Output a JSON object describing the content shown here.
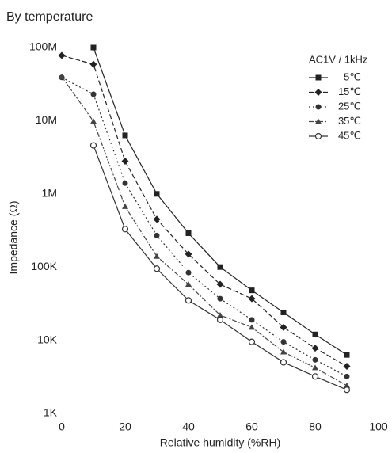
{
  "chart_data": {
    "type": "line",
    "title": "By temperature",
    "x_label": "Relative humidity (%RH)",
    "y_label": "Impedance (Ω)",
    "legend_title": "AC1V / 1kHz",
    "legend_position": "upper right",
    "log_y": true,
    "x": [
      0,
      10,
      20,
      30,
      40,
      50,
      60,
      70,
      80,
      90
    ],
    "xlim": [
      0,
      100
    ],
    "xticks": [
      0,
      20,
      40,
      60,
      80,
      100
    ],
    "ylim": [
      1000,
      100000000
    ],
    "yticks": [
      {
        "value": 1000,
        "label": "1K"
      },
      {
        "value": 10000,
        "label": "10K"
      },
      {
        "value": 100000,
        "label": "100K"
      },
      {
        "value": 1000000,
        "label": "1M"
      },
      {
        "value": 10000000,
        "label": "10M"
      },
      {
        "value": 100000000,
        "label": "100M"
      }
    ],
    "series": [
      {
        "name": "5℃",
        "color": "#222222",
        "marker": "square",
        "dash": "none",
        "values": [
          null,
          100000000,
          6300000,
          1000000,
          290000,
          100000,
          48000,
          24000,
          12000,
          6300
        ]
      },
      {
        "name": "15℃",
        "color": "#222222",
        "marker": "diamond",
        "dash": "6 3",
        "values": [
          78000000,
          59000000,
          2800000,
          450000,
          150000,
          58000,
          37000,
          15000,
          7800,
          4400
        ]
      },
      {
        "name": "25℃",
        "color": "#333333",
        "marker": "circle",
        "dash": "2 3",
        "values": [
          39000000,
          23000000,
          1400000,
          270000,
          84000,
          37000,
          19000,
          9500,
          5400,
          3200
        ]
      },
      {
        "name": "35℃",
        "color": "#444444",
        "marker": "triangle",
        "dash": "6 2 2 2",
        "values": [
          40000000,
          9800000,
          670000,
          140000,
          58000,
          22000,
          15000,
          6900,
          4200,
          2400
        ]
      },
      {
        "name": "45℃",
        "color": "#333333",
        "marker": "open-circle",
        "dash": "none",
        "values": [
          null,
          4600000,
          330000,
          95000,
          35000,
          19000,
          9500,
          5000,
          3200,
          2100
        ]
      }
    ]
  }
}
